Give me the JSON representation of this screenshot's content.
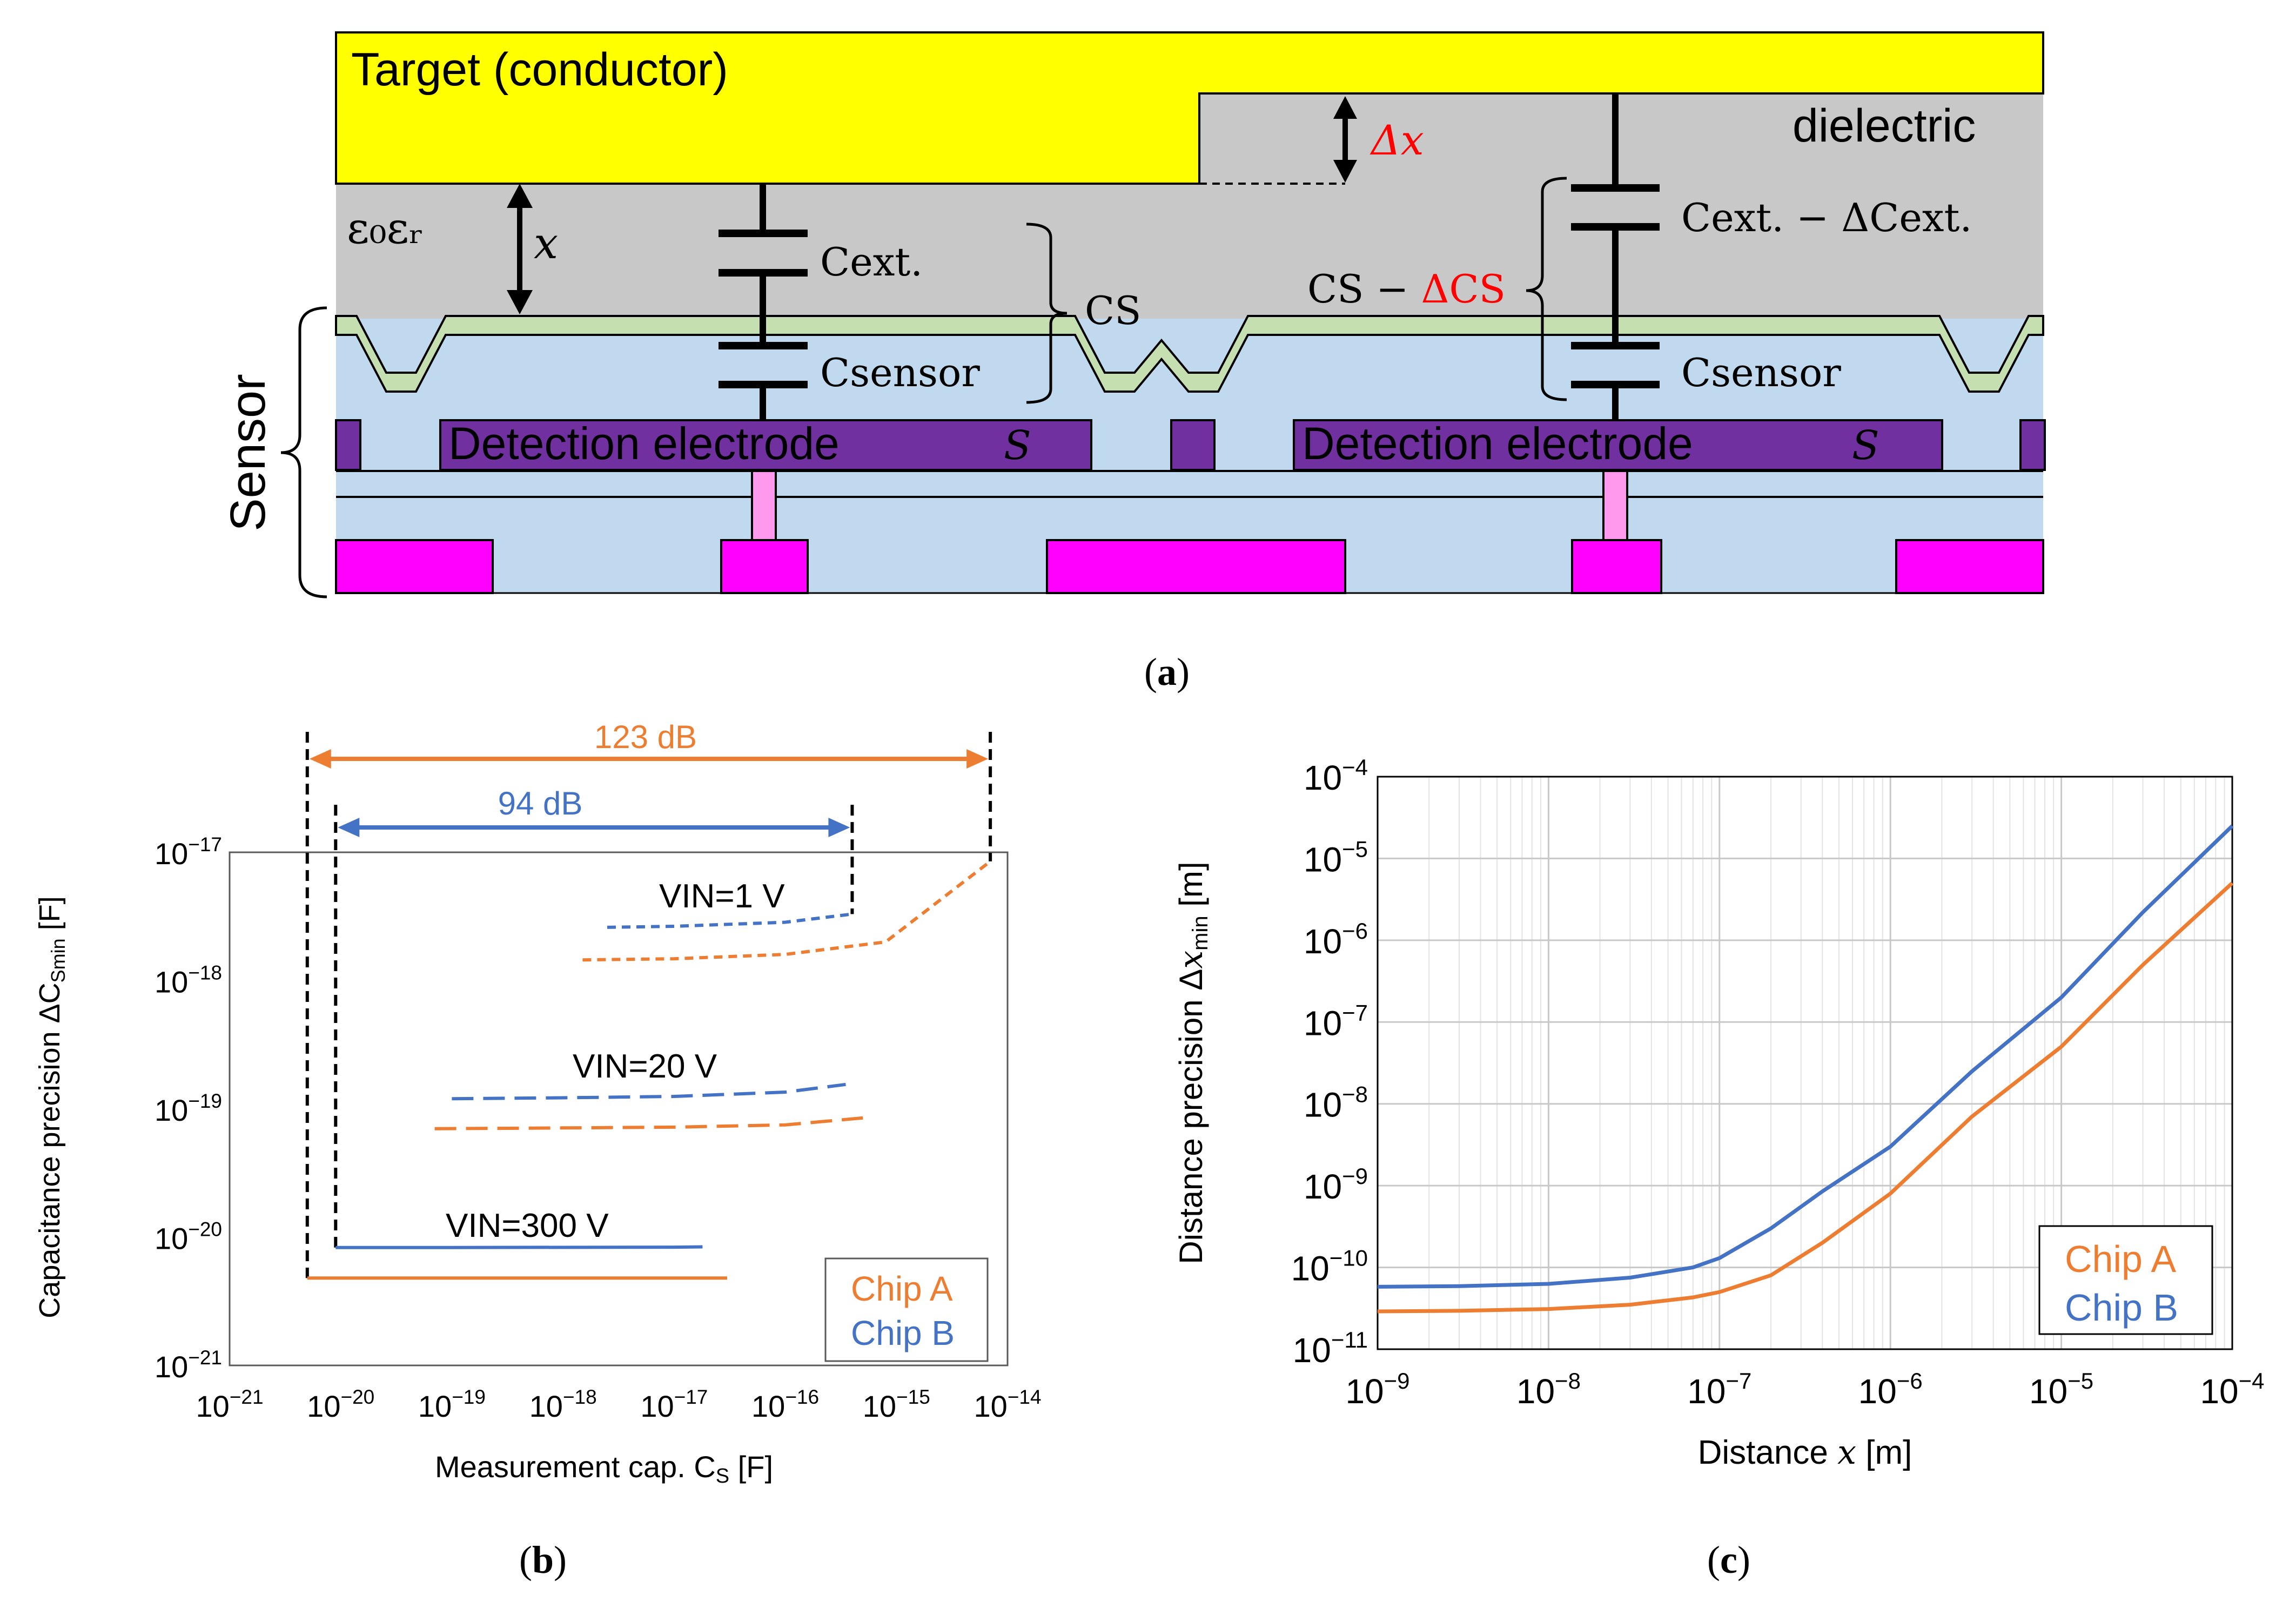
{
  "colors": {
    "target": "#ffff00",
    "dielectric": "#c8c8c8",
    "sensor_body": "#c0d9ee",
    "coating": "#c5dfb1",
    "electrode": "#7030a0",
    "metal": "#ff00ff",
    "via": "#ff99ee",
    "chip_a": "#ed7d31",
    "chip_b": "#4472c4",
    "accent_red": "#ff0000"
  },
  "panel_a": {
    "caption": "a",
    "target_label": "Target (conductor)",
    "dielectric_label": "dielectric",
    "epsilon_label": "ε₀εᵣ",
    "x_label": "x",
    "delta_x_label": "Δx",
    "sensor_label": "Sensor",
    "left": {
      "c_ext": "Cext.",
      "c_sensor": "Csensor",
      "c_s": "CS"
    },
    "right": {
      "c_ext": "Cext. − ΔCext.",
      "c_sensor": "Csensor",
      "c_s_main": "CS −",
      "c_s_delta": "ΔCS"
    },
    "electrode_label": "Detection electrode",
    "electrode_s": "S"
  },
  "panel_b": {
    "caption": "b",
    "chart_data": {
      "type": "line",
      "title": "",
      "xlabel": "Measurement cap. CS [F]",
      "ylabel": "Capacitance precision ΔCSmin [F]",
      "x_scale": "log",
      "y_scale": "log",
      "xlim": [
        1e-21,
        1e-14
      ],
      "ylim": [
        1e-21,
        1e-17
      ],
      "x_ticks": [
        "10−21",
        "10−20",
        "10−19",
        "10−18",
        "10−17",
        "10−16",
        "10−15",
        "10−14"
      ],
      "y_ticks": [
        "10−21",
        "10−20",
        "10−19",
        "10−18",
        "10−17"
      ],
      "legend": [
        "Chip A",
        "Chip B"
      ],
      "legend_position": "bottom-right",
      "annotations": {
        "range_a": "123 dB",
        "range_b": "94 dB",
        "vin_1": "VIN=1 V",
        "vin_20": "VIN=20 V",
        "vin_300": "VIN=300 V"
      },
      "series": [
        {
          "name": "Chip A",
          "condition": "VIN=1 V",
          "style": "short-dash",
          "x": [
            1.5e-18,
            1e-17,
            1e-16,
            8e-16,
            7e-15
          ],
          "y": [
            1.45e-18,
            1.48e-18,
            1.6e-18,
            2e-18,
            8.5e-18
          ]
        },
        {
          "name": "Chip B",
          "condition": "VIN=1 V",
          "style": "short-dash",
          "x": [
            2.5e-18,
            1e-17,
            1e-16,
            4e-16
          ],
          "y": [
            2.6e-18,
            2.65e-18,
            2.85e-18,
            3.3e-18
          ]
        },
        {
          "name": "Chip A",
          "condition": "VIN=20 V",
          "style": "long-dash",
          "x": [
            7e-20,
            1e-18,
            1e-17,
            1e-16,
            5e-16
          ],
          "y": [
            7e-20,
            7.1e-20,
            7.2e-20,
            7.5e-20,
            8.5e-20
          ]
        },
        {
          "name": "Chip B",
          "condition": "VIN=20 V",
          "style": "long-dash",
          "x": [
            1e-19,
            1e-18,
            1e-17,
            1e-16,
            3.5e-16
          ],
          "y": [
            1.2e-19,
            1.22e-19,
            1.25e-19,
            1.35e-19,
            1.55e-19
          ]
        },
        {
          "name": "Chip A",
          "condition": "VIN=300 V",
          "style": "solid",
          "x": [
            5e-21,
            1e-19,
            1e-17,
            3e-17
          ],
          "y": [
            4.8e-21,
            4.8e-21,
            4.8e-21,
            4.8e-21
          ]
        },
        {
          "name": "Chip B",
          "condition": "VIN=300 V",
          "style": "solid",
          "x": [
            9e-21,
            1e-19,
            1e-17,
            1.8e-17
          ],
          "y": [
            8.3e-21,
            8.3e-21,
            8.35e-21,
            8.4e-21
          ]
        }
      ],
      "range_markers": {
        "chip_a": {
          "x_from": 5e-21,
          "x_to": 7e-15
        },
        "chip_b": {
          "x_from": 9e-21,
          "x_to": 4e-16
        }
      }
    }
  },
  "panel_c": {
    "caption": "c",
    "chart_data": {
      "type": "line",
      "title": "",
      "xlabel": "Distance x [m]",
      "ylabel": "Distance precision Δxmin [m]",
      "x_scale": "log",
      "y_scale": "log",
      "xlim": [
        1e-09,
        0.0001
      ],
      "ylim": [
        1e-11,
        0.0001
      ],
      "x_ticks": [
        "10−9",
        "10−8",
        "10−7",
        "10−6",
        "10−5",
        "10−4"
      ],
      "y_ticks": [
        "10−11",
        "10−10",
        "10−9",
        "10−8",
        "10−7",
        "10−6",
        "10−5",
        "10−4"
      ],
      "grid": true,
      "legend": [
        "Chip A",
        "Chip B"
      ],
      "legend_position": "bottom-right",
      "series": [
        {
          "name": "Chip A",
          "x": [
            1e-09,
            3e-09,
            1e-08,
            3e-08,
            7e-08,
            1e-07,
            2e-07,
            4e-07,
            1e-06,
            3e-06,
            1e-05,
            3e-05,
            0.0001
          ],
          "y": [
            2.9e-11,
            2.95e-11,
            3.1e-11,
            3.5e-11,
            4.3e-11,
            5e-11,
            8e-11,
            2e-10,
            8e-10,
            7e-09,
            5e-08,
            5e-07,
            5e-06
          ]
        },
        {
          "name": "Chip B",
          "x": [
            1e-09,
            3e-09,
            1e-08,
            3e-08,
            7e-08,
            1e-07,
            2e-07,
            4e-07,
            1e-06,
            3e-06,
            1e-05,
            3e-05,
            0.0001
          ],
          "y": [
            5.8e-11,
            5.9e-11,
            6.3e-11,
            7.5e-11,
            1e-10,
            1.3e-10,
            3e-10,
            8.5e-10,
            3e-09,
            2.5e-08,
            2e-07,
            2.2e-06,
            2.5e-05
          ]
        }
      ]
    }
  }
}
